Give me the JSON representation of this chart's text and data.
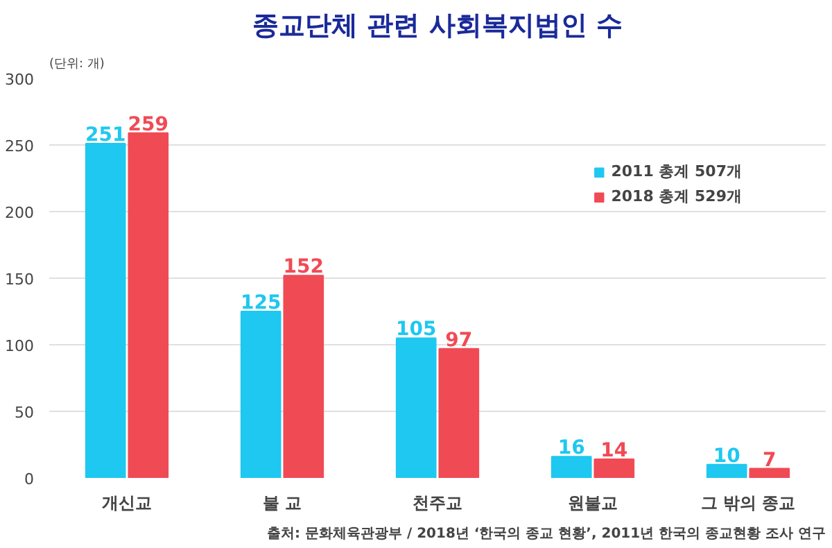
{
  "chart_data": {
    "type": "bar",
    "title": "종교단체 관련 사회복지법인 수",
    "ylabel": "(단위: 개)",
    "categories": [
      "개신교",
      "불 교",
      "천주교",
      "원불교",
      "그 밖의 종교"
    ],
    "series": [
      {
        "name": "2011 총계 507개",
        "color": "#1ec8f0",
        "values": [
          251,
          125,
          105,
          16,
          10
        ]
      },
      {
        "name": "2018 총계 529개",
        "color": "#f04b55",
        "values": [
          259,
          152,
          97,
          14,
          7
        ]
      }
    ],
    "ylim": [
      0,
      300
    ],
    "yticks": [
      0,
      50,
      100,
      150,
      200,
      250,
      300
    ],
    "grid": "y",
    "legend": "top right",
    "data_labels": true,
    "annotations": [
      "출처: 문화체육관광부 / 2018년 ‘한국의 종교 현황’, 2011년 한국의 종교현황 조사 연구"
    ]
  }
}
